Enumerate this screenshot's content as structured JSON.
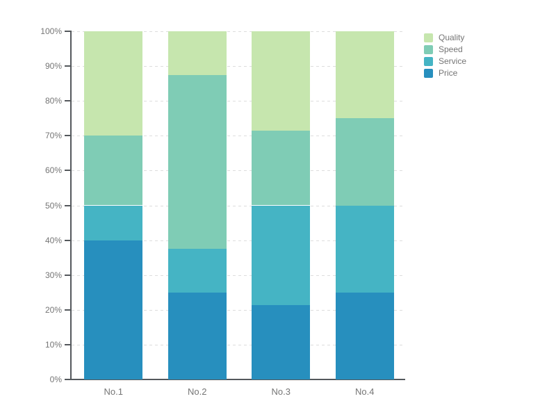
{
  "chart_data": {
    "type": "bar",
    "variant": "stacked-100-percent-column",
    "title": "",
    "categories": [
      "No.1",
      "No.2",
      "No.3",
      "No.4"
    ],
    "series": [
      {
        "name": "Price",
        "color": "#278fbe",
        "values": [
          40,
          25,
          21.4,
          25
        ]
      },
      {
        "name": "Service",
        "color": "#45b4c4",
        "values": [
          10,
          12.5,
          28.6,
          25
        ]
      },
      {
        "name": "Speed",
        "color": "#7fccb5",
        "values": [
          20,
          50,
          21.4,
          25
        ]
      },
      {
        "name": "Quality",
        "color": "#c6e6ae",
        "values": [
          30,
          12.5,
          28.6,
          25
        ]
      }
    ],
    "stack_order_bottom_to_top": [
      "Price",
      "Service",
      "Speed",
      "Quality"
    ],
    "legend": {
      "position": "top-right",
      "items": [
        "Quality",
        "Speed",
        "Service",
        "Price"
      ]
    },
    "y_axis": {
      "min": 0,
      "max": 100,
      "tick_step": 10,
      "tick_labels": [
        "0%",
        "10%",
        "20%",
        "30%",
        "40%",
        "50%",
        "60%",
        "70%",
        "80%",
        "90%",
        "100%"
      ],
      "grid": "dashed"
    },
    "x_axis": {
      "labels": [
        "No.1",
        "No.2",
        "No.3",
        "No.4"
      ]
    },
    "colors": {
      "axis": "#54585c",
      "grid": "#dddddd",
      "text": "#757575",
      "background": "#ffffff"
    }
  }
}
